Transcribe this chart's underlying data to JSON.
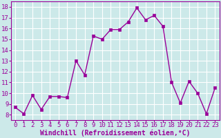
{
  "x": [
    0,
    1,
    2,
    3,
    4,
    5,
    6,
    7,
    8,
    9,
    10,
    11,
    12,
    13,
    14,
    15,
    16,
    17,
    18,
    19,
    20,
    21,
    22,
    23
  ],
  "y": [
    8.7,
    8.1,
    9.8,
    8.5,
    9.7,
    9.7,
    9.6,
    13.0,
    11.7,
    15.3,
    15.0,
    15.9,
    15.9,
    16.6,
    17.9,
    16.8,
    17.2,
    16.2,
    11.0,
    9.1,
    11.1,
    10.0,
    8.1,
    10.5
  ],
  "line_color": "#990099",
  "marker": "s",
  "markersize": 2.5,
  "linewidth": 1.0,
  "bg_color": "#cce9e9",
  "grid_color": "#ffffff",
  "xlabel": "Windchill (Refroidissement éolien,°C)",
  "xlabel_fontsize": 7,
  "tick_fontsize": 6.5,
  "ylim": [
    7.5,
    18.5
  ],
  "yticks": [
    8,
    9,
    10,
    11,
    12,
    13,
    14,
    15,
    16,
    17,
    18
  ],
  "xticks": [
    0,
    1,
    2,
    3,
    4,
    5,
    6,
    7,
    8,
    9,
    10,
    11,
    12,
    13,
    14,
    15,
    16,
    17,
    18,
    19,
    20,
    21,
    22,
    23
  ],
  "xlim": [
    -0.5,
    23.5
  ]
}
